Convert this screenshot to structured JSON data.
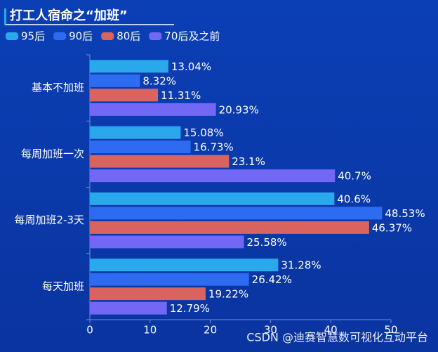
{
  "chart_data": {
    "type": "bar",
    "orientation": "horizontal",
    "title": "打工人宿命之“加班”",
    "categories": [
      "基本不加班",
      "每周加班一次",
      "每周加班2-3天",
      "每天加班"
    ],
    "series": [
      {
        "name": "95后",
        "color": "#29a8ec",
        "values": [
          13.04,
          15.08,
          40.6,
          31.28
        ],
        "value_labels": [
          "13.04%",
          "15.08%",
          "40.6%",
          "31.28%"
        ]
      },
      {
        "name": "90后",
        "color": "#2d6cf0",
        "values": [
          8.32,
          16.73,
          48.53,
          26.42
        ],
        "value_labels": [
          "8.32%",
          "16.73%",
          "48.53%",
          "26.42%"
        ]
      },
      {
        "name": "80后",
        "color": "#d9645f",
        "values": [
          11.31,
          23.1,
          46.37,
          19.22
        ],
        "value_labels": [
          "11.31%",
          "23.1%",
          "46.37%",
          "19.22%"
        ]
      },
      {
        "name": "70后及之前",
        "color": "#7368f6",
        "values": [
          20.93,
          40.7,
          25.58,
          12.79
        ],
        "value_labels": [
          "20.93%",
          "40.7%",
          "25.58%",
          "12.79%"
        ]
      }
    ],
    "xlim": [
      0,
      50
    ],
    "xticks": [
      0,
      10,
      20,
      30,
      40,
      50
    ],
    "watermark": "CSDN @迪赛智慧数可视化互动平台"
  }
}
